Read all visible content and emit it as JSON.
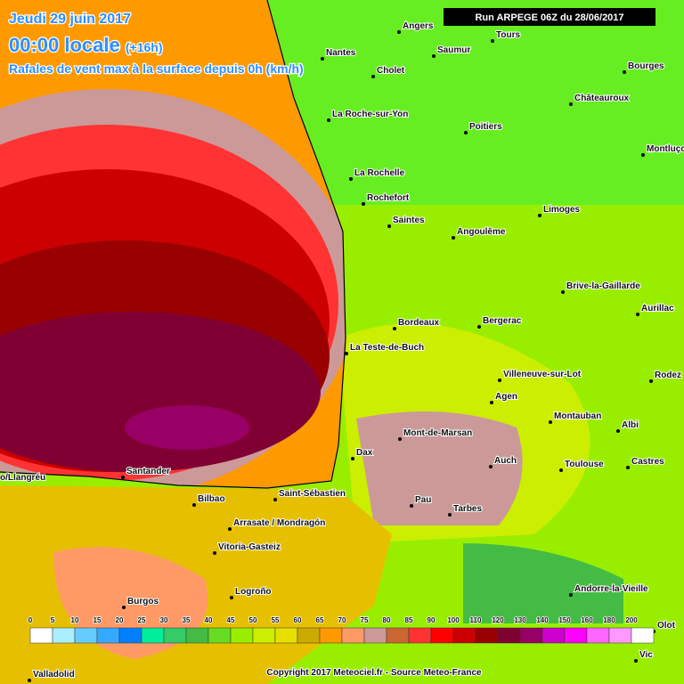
{
  "header": {
    "date": "Jeudi 29 juin 2017",
    "time": "00:00 locale",
    "lead": "(+16h)",
    "subtitle": "Rafales de vent max à la surface depuis 0h (km/h)",
    "run": "Run ARPEGE 06Z du 28/06/2017"
  },
  "cities": [
    "Angers",
    "Saumur",
    "Tours",
    "Nantes",
    "Cholet",
    "Bourges",
    "Châteauroux",
    "La Roche-sur-Yon",
    "Poitiers",
    "Montluçon",
    "La Rochelle",
    "Rochefort",
    "Saintes",
    "Angoulême",
    "Limoges",
    "Brive-la-Gaillarde",
    "Aurillac",
    "Bordeaux",
    "Bergerac",
    "La Teste-de-Buch",
    "Villeneuve-sur-Lot",
    "Rodez",
    "Agen",
    "Montauban",
    "Albi",
    "Mont-de-Marsan",
    "Auch",
    "Dax",
    "Toulouse",
    "Castres",
    "Santander",
    "o/Llangréu",
    "Bilbao",
    "Saint-Sébastien",
    "Pau",
    "Tarbes",
    "Arrasate / Mondragón",
    "Vitoria-Gasteiz",
    "Logroño",
    "Burgos",
    "Andorre-la-Vieille",
    "Olot",
    "Vic",
    "Valladolid"
  ],
  "legend": [
    {
      "value": 0,
      "color": "#ffffff"
    },
    {
      "value": 5,
      "color": "#aaeeff"
    },
    {
      "value": 10,
      "color": "#66ccff"
    },
    {
      "value": 15,
      "color": "#33aaff"
    },
    {
      "value": 20,
      "color": "#0080ff"
    },
    {
      "value": 25,
      "color": "#00ee99"
    },
    {
      "value": 30,
      "color": "#33cc66"
    },
    {
      "value": 35,
      "color": "#44bb44"
    },
    {
      "value": 40,
      "color": "#66dd22"
    },
    {
      "value": 45,
      "color": "#99ee00"
    },
    {
      "value": 50,
      "color": "#ccee00"
    },
    {
      "value": 55,
      "color": "#e6e000"
    },
    {
      "value": 60,
      "color": "#ccaa00"
    },
    {
      "value": 65,
      "color": "#ff9900"
    },
    {
      "value": 70,
      "color": "#ff9966"
    },
    {
      "value": 75,
      "color": "#cc9999"
    },
    {
      "value": 80,
      "color": "#cc6633"
    },
    {
      "value": 85,
      "color": "#ff3333"
    },
    {
      "value": 90,
      "color": "#ff0000"
    },
    {
      "value": 100,
      "color": "#cc0000"
    },
    {
      "value": 110,
      "color": "#990000"
    },
    {
      "value": 120,
      "color": "#800033"
    },
    {
      "value": 130,
      "color": "#990066"
    },
    {
      "value": 140,
      "color": "#cc00cc"
    },
    {
      "value": 150,
      "color": "#ff00ff"
    },
    {
      "value": 160,
      "color": "#ff66ff"
    },
    {
      "value": 180,
      "color": "#ff99ff"
    },
    {
      "value": 200,
      "color": "#ffffff"
    }
  ],
  "copyright": "Copyright 2017 Meteociel.fr - Source Meteo-France"
}
